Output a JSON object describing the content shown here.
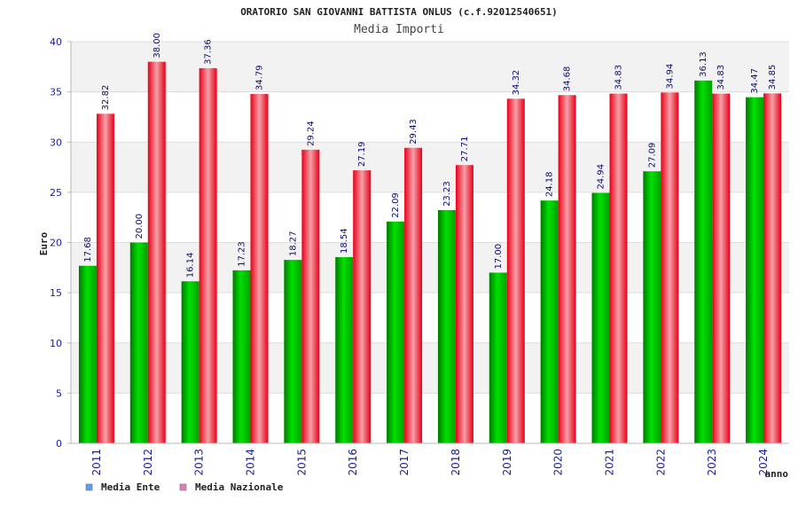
{
  "chart_data": {
    "type": "bar",
    "title": "ORATORIO SAN GIOVANNI BATTISTA ONLUS (c.f.92012540651)",
    "subtitle": "Media Importi",
    "xlabel": "anno",
    "ylabel": "Euro",
    "ylim": [
      0,
      40
    ],
    "yticks": [
      0,
      5,
      10,
      15,
      20,
      25,
      30,
      35,
      40
    ],
    "grid": "horizontal bands",
    "legend_placement": "bottom-left",
    "categories": [
      "2011",
      "2012",
      "2013",
      "2014",
      "2015",
      "2016",
      "2017",
      "2018",
      "2019",
      "2020",
      "2021",
      "2022",
      "2023",
      "2024"
    ],
    "series": [
      {
        "name": "Media Ente",
        "color": "#00c000",
        "legend_color": "#5f9fe8",
        "values": [
          17.68,
          20.0,
          16.14,
          17.23,
          18.27,
          18.54,
          22.09,
          23.23,
          17.0,
          24.18,
          24.94,
          27.09,
          36.13,
          34.47
        ],
        "labels": [
          "17.68",
          "20.00",
          "16.14",
          "17.23",
          "18.27",
          "18.54",
          "22.09",
          "23.23",
          "17.00",
          "24.18",
          "24.94",
          "27.09",
          "36.13",
          "34.47"
        ]
      },
      {
        "name": "Media Nazionale",
        "color": "#f00020",
        "legend_color": "#e080b0",
        "values": [
          32.82,
          38.0,
          37.36,
          34.79,
          29.24,
          27.19,
          29.43,
          27.71,
          34.32,
          34.68,
          34.83,
          34.94,
          34.83,
          34.85
        ],
        "labels": [
          "32.82",
          "38.00",
          "37.36",
          "34.79",
          "29.24",
          "27.19",
          "29.43",
          "27.71",
          "34.32",
          "34.68",
          "34.83",
          "34.94",
          "34.83",
          "34.85"
        ]
      }
    ]
  }
}
